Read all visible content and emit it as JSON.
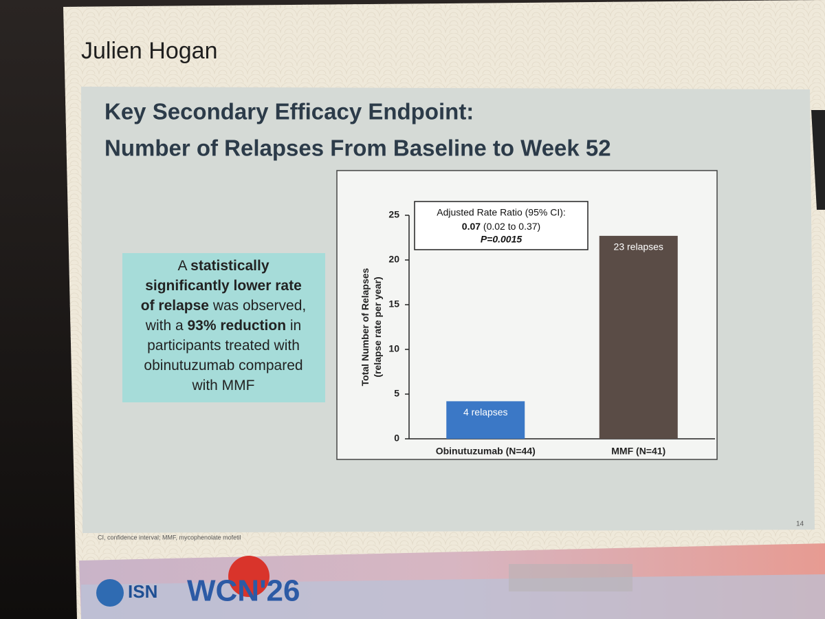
{
  "slide": {
    "speaker": "Julien Hogan",
    "title_lines": [
      "Key Secondary Efficacy Endpoint:",
      "Number of Relapses From Baseline to Week 52"
    ],
    "callout": [
      [
        {
          "text": "A ",
          "bold": false
        },
        {
          "text": "statistically",
          "bold": true
        }
      ],
      [
        {
          "text": "significantly lower rate",
          "bold": true
        }
      ],
      [
        {
          "text": "of relapse",
          "bold": true
        },
        {
          "text": " was observed,",
          "bold": false
        }
      ],
      [
        {
          "text": "with a ",
          "bold": false
        },
        {
          "text": "93% reduction",
          "bold": true
        },
        {
          "text": " in",
          "bold": false
        }
      ],
      [
        {
          "text": "participants treated with",
          "bold": false
        }
      ],
      [
        {
          "text": "obinutuzumab compared",
          "bold": false
        }
      ],
      [
        {
          "text": "with MMF",
          "bold": false
        }
      ]
    ],
    "footnote": "CI, confidence interval; MMF, mycophenolate mofetil",
    "page_number": "14",
    "logo_left": "ISN",
    "logo_right": "WCN'26"
  },
  "chart_data": {
    "type": "bar",
    "ylabel": [
      "Total Number of Relapses",
      "(relapse rate per year)"
    ],
    "categories": [
      "Obinutuzumab (N=44)",
      "MMF (N=41)"
    ],
    "values": [
      4.2,
      22.7
    ],
    "value_labels": [
      "4 relapses",
      "23 relapses"
    ],
    "colors": [
      "#3b78c6",
      "#5a4c46"
    ],
    "ylim": [
      0,
      25
    ],
    "yticks": [
      0,
      5,
      10,
      15,
      20,
      25
    ],
    "annotation": {
      "line1": "Adjusted Rate Ratio (95% CI):",
      "line2_bold": "0.07",
      "line2_rest": " (0.02 to 0.37)",
      "line3": "P=0.0015"
    }
  }
}
